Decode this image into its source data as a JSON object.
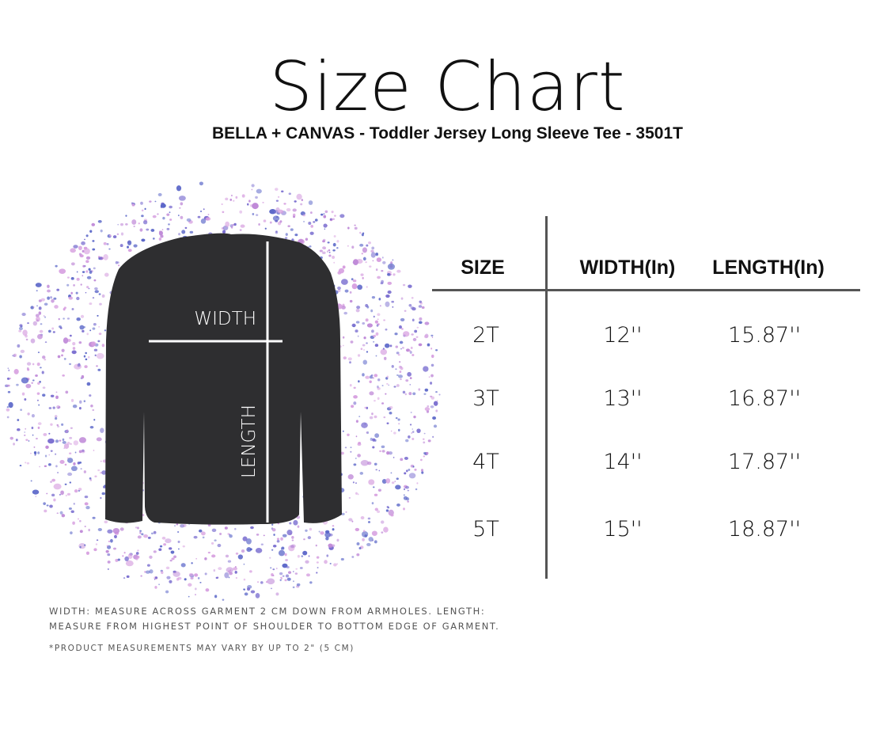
{
  "title": "Size Chart",
  "subtitle": "BELLA + CANVAS - Toddler Jersey Long Sleeve Tee - 3501T",
  "diagram": {
    "width_label": "WIDTH",
    "length_label": "LENGTH",
    "shirt_color": "#2e2e30",
    "splatter_colors": [
      "#7b6fd0",
      "#c08ad8",
      "#5a66c8",
      "#d7a0e0"
    ]
  },
  "table": {
    "headers": [
      "SIZE",
      "WIDTH(In)",
      "LENGTH(In)"
    ],
    "rows": [
      [
        "2T",
        "12''",
        "15.87''"
      ],
      [
        "3T",
        "13''",
        "16.87''"
      ],
      [
        "4T",
        "14''",
        "17.87''"
      ],
      [
        "5T",
        "15''",
        "18.87''"
      ]
    ]
  },
  "notes": {
    "line1": "WIDTH: MEASURE ACROSS GARMENT 2 CM DOWN FROM ARMHOLES.  LENGTH:",
    "line2": "MEASURE FROM HIGHEST POINT OF SHOULDER TO BOTTOM EDGE OF GARMENT.",
    "disclaimer": "*PRODUCT MEASUREMENTS MAY VARY BY UP TO 2\" (5 CM)"
  }
}
